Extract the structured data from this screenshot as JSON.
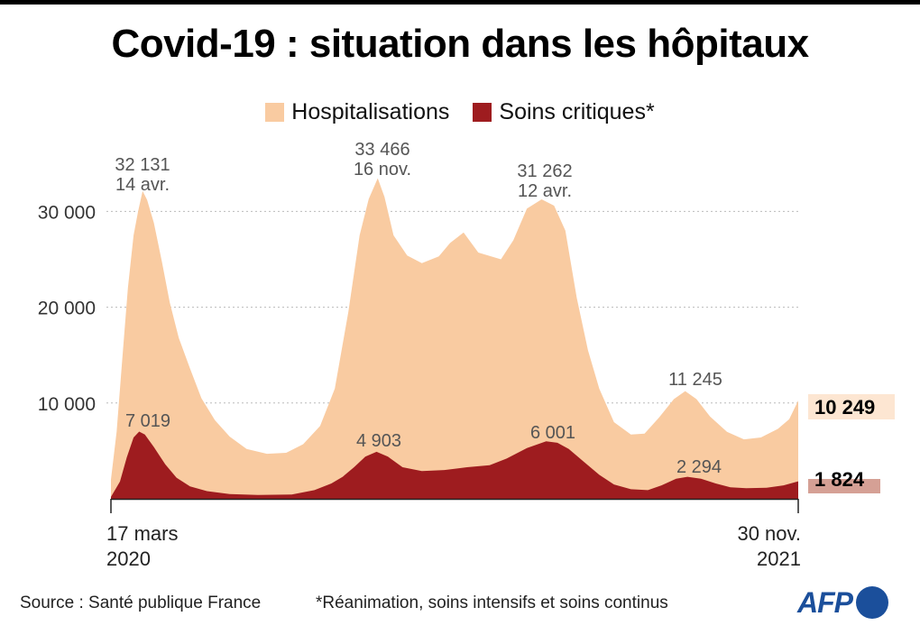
{
  "title": "Covid-19 : situation dans les hôpitaux",
  "legend": {
    "hosp": "Hospitalisations",
    "crit": "Soins critiques*"
  },
  "footer": {
    "source": "Source : Santé publique France",
    "footnote": "*Réanimation, soins intensifs et soins continus",
    "logo": "AFP"
  },
  "colors": {
    "hosp": "#f9cba1",
    "crit": "#9e1c1f",
    "hosp_label_bg": "#fde6d2",
    "crit_label_bg": "#d5a095",
    "annotation": "#555555",
    "grid": "#bbbbbb",
    "logo": "#1b4f9b"
  },
  "chart_data": {
    "type": "area",
    "x_start_label": [
      "17 mars",
      "2020"
    ],
    "x_end_label": [
      "30 nov.",
      "2021"
    ],
    "y_ticks": [
      10000,
      20000,
      30000
    ],
    "y_tick_labels": [
      "10 000",
      "20 000",
      "30 000"
    ],
    "ylim": [
      0,
      36000
    ],
    "grid": true,
    "legend_position": "top",
    "series": [
      {
        "name": "Hospitalisations",
        "values": [
          [
            0,
            2000
          ],
          [
            5,
            7000
          ],
          [
            10,
            14500
          ],
          [
            15,
            22000
          ],
          [
            20,
            27500
          ],
          [
            24,
            30000
          ],
          [
            28,
            32131
          ],
          [
            32,
            31200
          ],
          [
            38,
            28800
          ],
          [
            45,
            24800
          ],
          [
            52,
            20500
          ],
          [
            60,
            16800
          ],
          [
            70,
            13600
          ],
          [
            80,
            10500
          ],
          [
            92,
            8200
          ],
          [
            105,
            6500
          ],
          [
            120,
            5200
          ],
          [
            138,
            4700
          ],
          [
            155,
            4800
          ],
          [
            170,
            5700
          ],
          [
            185,
            7600
          ],
          [
            198,
            11500
          ],
          [
            210,
            19500
          ],
          [
            220,
            27500
          ],
          [
            228,
            31300
          ],
          [
            236,
            33466
          ],
          [
            242,
            31500
          ],
          [
            250,
            27500
          ],
          [
            262,
            25400
          ],
          [
            275,
            24600
          ],
          [
            290,
            25300
          ],
          [
            300,
            26700
          ],
          [
            312,
            27800
          ],
          [
            325,
            25700
          ],
          [
            345,
            25000
          ],
          [
            356,
            27000
          ],
          [
            368,
            30300
          ],
          [
            381,
            31262
          ],
          [
            392,
            30600
          ],
          [
            402,
            28000
          ],
          [
            412,
            21000
          ],
          [
            422,
            15500
          ],
          [
            432,
            11500
          ],
          [
            445,
            8000
          ],
          [
            460,
            6700
          ],
          [
            472,
            6800
          ],
          [
            485,
            8500
          ],
          [
            498,
            10400
          ],
          [
            508,
            11245
          ],
          [
            518,
            10400
          ],
          [
            530,
            8600
          ],
          [
            545,
            7000
          ],
          [
            560,
            6200
          ],
          [
            575,
            6400
          ],
          [
            590,
            7300
          ],
          [
            600,
            8300
          ],
          [
            608,
            10249
          ]
        ],
        "peaks": [
          {
            "value": "32 131",
            "date": "14 avr."
          },
          {
            "value": "33 466",
            "date": "16 nov."
          },
          {
            "value": "31 262",
            "date": "12 avr."
          },
          {
            "value": "11 245",
            "date": ""
          }
        ],
        "last_value": "10 249"
      },
      {
        "name": "Soins critiques",
        "values": [
          [
            0,
            200
          ],
          [
            8,
            1800
          ],
          [
            14,
            4300
          ],
          [
            20,
            6400
          ],
          [
            25,
            7019
          ],
          [
            30,
            6700
          ],
          [
            38,
            5400
          ],
          [
            48,
            3600
          ],
          [
            58,
            2200
          ],
          [
            70,
            1300
          ],
          [
            85,
            800
          ],
          [
            105,
            500
          ],
          [
            130,
            400
          ],
          [
            160,
            450
          ],
          [
            180,
            900
          ],
          [
            195,
            1600
          ],
          [
            205,
            2300
          ],
          [
            215,
            3300
          ],
          [
            225,
            4400
          ],
          [
            235,
            4903
          ],
          [
            245,
            4400
          ],
          [
            258,
            3300
          ],
          [
            275,
            2900
          ],
          [
            295,
            3000
          ],
          [
            315,
            3300
          ],
          [
            335,
            3500
          ],
          [
            350,
            4200
          ],
          [
            368,
            5300
          ],
          [
            385,
            6001
          ],
          [
            395,
            5850
          ],
          [
            405,
            5200
          ],
          [
            418,
            3900
          ],
          [
            432,
            2500
          ],
          [
            445,
            1500
          ],
          [
            460,
            1000
          ],
          [
            475,
            900
          ],
          [
            487,
            1400
          ],
          [
            500,
            2100
          ],
          [
            510,
            2294
          ],
          [
            522,
            2100
          ],
          [
            535,
            1600
          ],
          [
            548,
            1200
          ],
          [
            562,
            1100
          ],
          [
            580,
            1150
          ],
          [
            595,
            1400
          ],
          [
            608,
            1824
          ]
        ],
        "peaks": [
          {
            "value": "7 019",
            "date": ""
          },
          {
            "value": "4 903",
            "date": ""
          },
          {
            "value": "6 001",
            "date": ""
          },
          {
            "value": "2 294",
            "date": ""
          }
        ],
        "last_value": "1 824"
      }
    ]
  }
}
